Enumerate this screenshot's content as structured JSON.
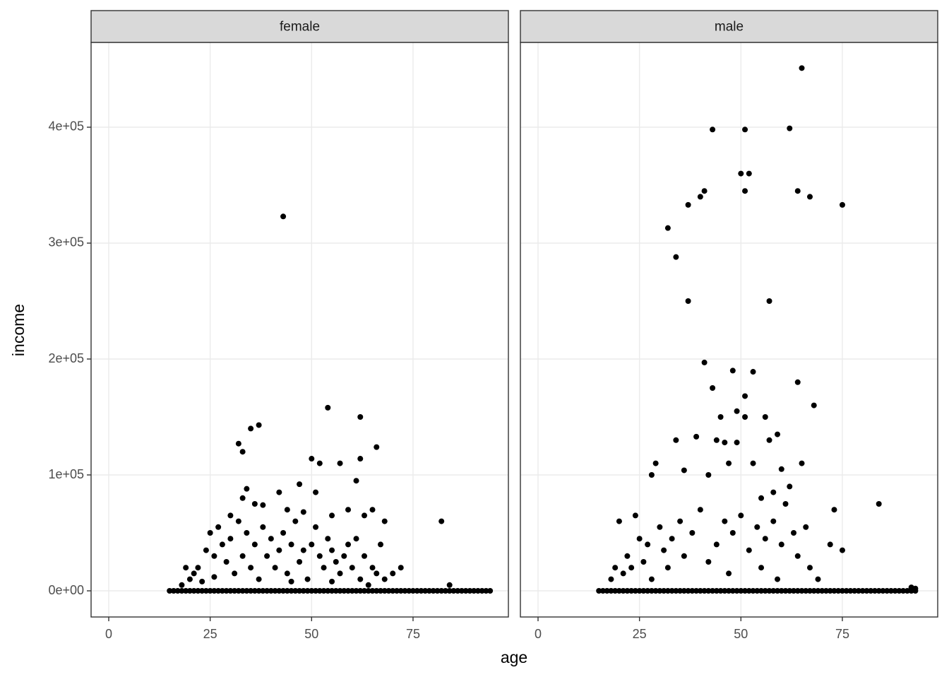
{
  "chart_data": [
    {
      "type": "scatter",
      "title": "female",
      "x_label": "age",
      "y_label": "income",
      "color": "#000000",
      "grid": true,
      "xlim": [
        -4.35,
        98.5
      ],
      "ylim": [
        -22560,
        473170
      ],
      "xticks": [
        0,
        25,
        50,
        75
      ],
      "yticks": [
        {
          "value": 0,
          "label": "0e+00"
        },
        {
          "value": 100000,
          "label": "1e+05"
        },
        {
          "value": 200000,
          "label": "2e+05"
        },
        {
          "value": 300000,
          "label": "3e+05"
        },
        {
          "value": 400000,
          "label": "4e+05"
        }
      ],
      "x": [
        15,
        16,
        17,
        18,
        19,
        20,
        21,
        22,
        23,
        24,
        25,
        26,
        27,
        28,
        29,
        30,
        31,
        32,
        33,
        34,
        35,
        36,
        37,
        38,
        39,
        40,
        41,
        42,
        43,
        44,
        45,
        46,
        47,
        48,
        49,
        50,
        51,
        52,
        53,
        54,
        55,
        56,
        57,
        58,
        59,
        60,
        61,
        62,
        63,
        64,
        65,
        66,
        67,
        68,
        69,
        70,
        71,
        72,
        73,
        74,
        75,
        76,
        77,
        78,
        79,
        80,
        81,
        82,
        83,
        84,
        85,
        86,
        87,
        88,
        89,
        90,
        91,
        92,
        93,
        94,
        43,
        54,
        62,
        37,
        35,
        32,
        33,
        66,
        50,
        62,
        52,
        57,
        61,
        47,
        34,
        42,
        51,
        44,
        36,
        38,
        30,
        59,
        65,
        63,
        68,
        82,
        33,
        48,
        55,
        20,
        22,
        24,
        25,
        26,
        27,
        28,
        29,
        30,
        31,
        32,
        33,
        34,
        35,
        36,
        37,
        38,
        39,
        40,
        41,
        42,
        43,
        44,
        45,
        46,
        47,
        48,
        49,
        50,
        51,
        52,
        53,
        54,
        55,
        56,
        57,
        58,
        59,
        60,
        61,
        62,
        63,
        64,
        65,
        66,
        67,
        68,
        70,
        72,
        84,
        18,
        19,
        21,
        23,
        26,
        45,
        55
      ],
      "y": [
        0,
        0,
        0,
        0,
        0,
        0,
        0,
        0,
        0,
        0,
        0,
        0,
        0,
        0,
        0,
        0,
        0,
        0,
        0,
        0,
        0,
        0,
        0,
        0,
        0,
        0,
        0,
        0,
        0,
        0,
        0,
        0,
        0,
        0,
        0,
        0,
        0,
        0,
        0,
        0,
        0,
        0,
        0,
        0,
        0,
        0,
        0,
        0,
        0,
        0,
        0,
        0,
        0,
        0,
        0,
        0,
        0,
        0,
        0,
        0,
        0,
        0,
        0,
        0,
        0,
        0,
        0,
        0,
        0,
        0,
        0,
        0,
        0,
        0,
        0,
        0,
        0,
        0,
        0,
        0,
        323000,
        158000,
        150000,
        143000,
        140000,
        127000,
        120000,
        124000,
        114000,
        114000,
        110000,
        110000,
        95000,
        92000,
        88000,
        85000,
        85000,
        70000,
        75000,
        74000,
        65000,
        70000,
        70000,
        65000,
        60000,
        60000,
        80000,
        68000,
        65000,
        10000,
        20000,
        35000,
        50000,
        30000,
        55000,
        40000,
        25000,
        45000,
        15000,
        60000,
        30000,
        50000,
        20000,
        40000,
        10000,
        55000,
        30000,
        45000,
        20000,
        35000,
        50000,
        15000,
        40000,
        60000,
        25000,
        35000,
        10000,
        40000,
        55000,
        30000,
        20000,
        45000,
        35000,
        25000,
        15000,
        30000,
        40000,
        20000,
        45000,
        10000,
        30000,
        5000,
        20000,
        15000,
        40000,
        10000,
        15000,
        20000,
        5000,
        5000,
        20000,
        15000,
        8000,
        12000,
        8000,
        8000
      ]
    },
    {
      "type": "scatter",
      "title": "male",
      "color": "#000000",
      "grid": true,
      "xlim": [
        -4.35,
        98.5
      ],
      "ylim": [
        -22560,
        473170
      ],
      "xticks": [
        0,
        25,
        50,
        75
      ],
      "x": [
        15,
        16,
        17,
        18,
        19,
        20,
        21,
        22,
        23,
        24,
        25,
        26,
        27,
        28,
        29,
        30,
        31,
        32,
        33,
        34,
        35,
        36,
        37,
        38,
        39,
        40,
        41,
        42,
        43,
        44,
        45,
        46,
        47,
        48,
        49,
        50,
        51,
        52,
        53,
        54,
        55,
        56,
        57,
        58,
        59,
        60,
        61,
        62,
        63,
        64,
        65,
        66,
        67,
        68,
        69,
        70,
        71,
        72,
        73,
        74,
        75,
        76,
        77,
        78,
        79,
        80,
        81,
        82,
        83,
        84,
        85,
        86,
        87,
        88,
        89,
        90,
        91,
        92,
        93,
        65,
        43,
        51,
        62,
        50,
        52,
        41,
        51,
        64,
        40,
        67,
        37,
        75,
        32,
        34,
        37,
        57,
        41,
        48,
        53,
        64,
        43,
        51,
        68,
        49,
        45,
        51,
        56,
        59,
        39,
        34,
        44,
        57,
        49,
        46,
        65,
        84,
        73,
        29,
        28,
        36,
        42,
        47,
        53,
        60,
        58,
        62,
        55,
        20,
        24,
        22,
        25,
        27,
        30,
        31,
        33,
        35,
        38,
        40,
        44,
        46,
        48,
        50,
        52,
        54,
        56,
        58,
        60,
        61,
        63,
        64,
        66,
        67,
        69,
        72,
        75,
        18,
        19,
        21,
        23,
        26,
        28,
        32,
        36,
        42,
        47,
        55,
        59,
        92,
        93
      ],
      "y": [
        0,
        0,
        0,
        0,
        0,
        0,
        0,
        0,
        0,
        0,
        0,
        0,
        0,
        0,
        0,
        0,
        0,
        0,
        0,
        0,
        0,
        0,
        0,
        0,
        0,
        0,
        0,
        0,
        0,
        0,
        0,
        0,
        0,
        0,
        0,
        0,
        0,
        0,
        0,
        0,
        0,
        0,
        0,
        0,
        0,
        0,
        0,
        0,
        0,
        0,
        0,
        0,
        0,
        0,
        0,
        0,
        0,
        0,
        0,
        0,
        0,
        0,
        0,
        0,
        0,
        0,
        0,
        0,
        0,
        0,
        0,
        0,
        0,
        0,
        0,
        0,
        0,
        0,
        0,
        451000,
        398000,
        398000,
        399000,
        360000,
        360000,
        345000,
        345000,
        345000,
        340000,
        340000,
        333000,
        333000,
        313000,
        288000,
        250000,
        250000,
        197000,
        190000,
        189000,
        180000,
        175000,
        168000,
        160000,
        155000,
        150000,
        150000,
        150000,
        135000,
        133000,
        130000,
        130000,
        130000,
        128000,
        128000,
        110000,
        75000,
        70000,
        110000,
        100000,
        104000,
        100000,
        110000,
        110000,
        105000,
        85000,
        90000,
        80000,
        60000,
        65000,
        30000,
        45000,
        40000,
        55000,
        35000,
        45000,
        60000,
        50000,
        70000,
        40000,
        60000,
        50000,
        65000,
        35000,
        55000,
        45000,
        60000,
        40000,
        75000,
        50000,
        30000,
        55000,
        20000,
        10000,
        40000,
        35000,
        10000,
        20000,
        15000,
        20000,
        25000,
        10000,
        20000,
        30000,
        25000,
        15000,
        20000,
        10000,
        3000,
        2000
      ]
    }
  ]
}
